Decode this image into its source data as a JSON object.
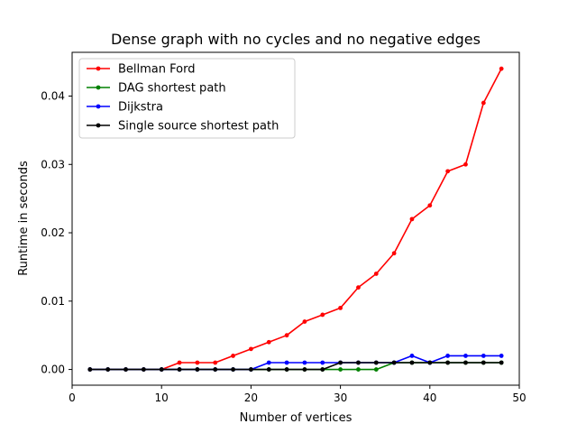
{
  "chart_data": {
    "type": "line",
    "title": "Dense graph with no cycles and no negative edges",
    "xlabel": "Number of vertices",
    "ylabel": "Runtime in seconds",
    "xlim": [
      0,
      50
    ],
    "ylim": [
      -0.0023,
      0.0464
    ],
    "xticks": [
      0,
      10,
      20,
      30,
      40,
      50
    ],
    "xtick_labels": [
      "0",
      "10",
      "20",
      "30",
      "40",
      "50"
    ],
    "yticks": [
      0,
      0.01,
      0.02,
      0.03,
      0.04
    ],
    "ytick_labels": [
      "0.00",
      "0.01",
      "0.02",
      "0.03",
      "0.04"
    ],
    "grid": false,
    "legend_position": "top-left",
    "x": [
      2,
      4,
      6,
      8,
      10,
      12,
      14,
      16,
      18,
      20,
      22,
      24,
      26,
      28,
      30,
      32,
      34,
      36,
      38,
      40,
      42,
      44,
      46,
      48
    ],
    "series": [
      {
        "name": "Bellman Ford",
        "color": "#ff0000",
        "values": [
          0,
          0,
          0,
          0,
          0,
          0.001,
          0.001,
          0.001,
          0.002,
          0.003,
          0.004,
          0.005,
          0.007,
          0.008,
          0.009,
          0.012,
          0.014,
          0.017,
          0.022,
          0.024,
          0.029,
          0.03,
          0.039,
          0.044
        ]
      },
      {
        "name": "DAG shortest path",
        "color": "#008000",
        "values": [
          0,
          0,
          0,
          0,
          0,
          0,
          0,
          0,
          0,
          0,
          0,
          0,
          0,
          0,
          0,
          0,
          0,
          0.001,
          0.001,
          0.001,
          0.001,
          0.001,
          0.001,
          0.001
        ]
      },
      {
        "name": "Dijkstra",
        "color": "#0000ff",
        "values": [
          0,
          0,
          0,
          0,
          0,
          0,
          0,
          0,
          0,
          0,
          0.001,
          0.001,
          0.001,
          0.001,
          0.001,
          0.001,
          0.001,
          0.001,
          0.002,
          0.001,
          0.002,
          0.002,
          0.002,
          0.002
        ]
      },
      {
        "name": "Single source shortest path",
        "color": "#000000",
        "values": [
          0,
          0,
          0,
          0,
          0,
          0,
          0,
          0,
          0,
          0,
          0,
          0,
          0,
          0,
          0.001,
          0.001,
          0.001,
          0.001,
          0.001,
          0.001,
          0.001,
          0.001,
          0.001,
          0.001
        ]
      }
    ]
  }
}
